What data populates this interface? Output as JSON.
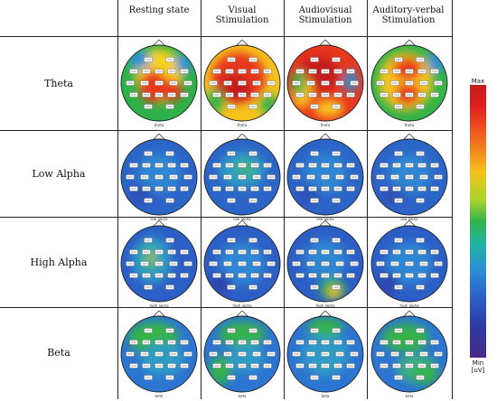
{
  "header": {
    "columns": [
      "Resting state",
      "Visual\nStimulation",
      "Audiovisual\nStimulation",
      "Auditory-verbal\nStimulation"
    ]
  },
  "rows": [
    {
      "label": "Theta",
      "band_caption": "theta",
      "states": [
        "theta-rest",
        "theta-visual",
        "theta-audiovisual",
        "theta-auditory"
      ]
    },
    {
      "label": "Low Alpha",
      "band_caption": "low alpha",
      "states": [
        "lowalpha",
        "lowalpha-visual",
        "lowalpha",
        "lowalpha"
      ]
    },
    {
      "label": "High Alpha",
      "band_caption": "high alpha",
      "states": [
        "highalpha-rest",
        "highalpha",
        "highalpha-audiovisual",
        "highalpha"
      ]
    },
    {
      "label": "Beta",
      "band_caption": "beta",
      "states": [
        "beta-rest",
        "beta-visual",
        "beta",
        "beta-auditory"
      ]
    }
  ],
  "scale": {
    "max_label": "Max",
    "min_label": "Min",
    "unit_label": "[uV]"
  }
}
